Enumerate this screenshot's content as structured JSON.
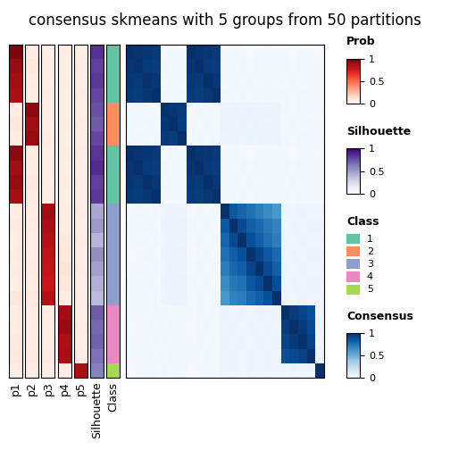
{
  "chart_data": {
    "type": "heatmap",
    "title": "consensus skmeans with 5 groups from 50 partitions",
    "legend_ref": "Consensus",
    "values": [
      [
        1.0,
        0.98,
        0.97,
        0.96,
        0.02,
        0.03,
        0.02,
        1.0,
        0.98,
        0.97,
        0.96,
        0.02,
        0.03,
        0.02,
        0.01,
        0.02,
        0.03,
        0.02,
        0.02,
        0.01,
        0.02,
        0.02,
        0.01
      ],
      [
        0.98,
        1.0,
        0.96,
        0.95,
        0.03,
        0.02,
        0.03,
        0.98,
        1.0,
        0.96,
        0.95,
        0.03,
        0.02,
        0.03,
        0.02,
        0.03,
        0.02,
        0.03,
        0.03,
        0.02,
        0.03,
        0.02,
        0.02
      ],
      [
        0.97,
        0.96,
        1.0,
        0.97,
        0.02,
        0.03,
        0.02,
        0.97,
        0.96,
        1.0,
        0.97,
        0.02,
        0.03,
        0.02,
        0.03,
        0.02,
        0.03,
        0.02,
        0.02,
        0.03,
        0.02,
        0.03,
        0.02
      ],
      [
        0.96,
        0.95,
        0.97,
        1.0,
        0.02,
        0.02,
        0.03,
        0.96,
        0.95,
        0.97,
        1.0,
        0.03,
        0.02,
        0.03,
        0.02,
        0.03,
        0.02,
        0.03,
        0.03,
        0.02,
        0.03,
        0.02,
        0.02
      ],
      [
        0.02,
        0.03,
        0.02,
        0.02,
        1.0,
        0.97,
        0.96,
        0.02,
        0.03,
        0.02,
        0.02,
        0.05,
        0.06,
        0.05,
        0.06,
        0.05,
        0.06,
        0.05,
        0.03,
        0.02,
        0.03,
        0.02,
        0.03
      ],
      [
        0.03,
        0.02,
        0.03,
        0.02,
        0.97,
        1.0,
        0.95,
        0.03,
        0.02,
        0.03,
        0.02,
        0.06,
        0.05,
        0.06,
        0.05,
        0.06,
        0.05,
        0.06,
        0.02,
        0.03,
        0.02,
        0.03,
        0.02
      ],
      [
        0.02,
        0.03,
        0.02,
        0.03,
        0.96,
        0.95,
        1.0,
        0.02,
        0.03,
        0.02,
        0.03,
        0.05,
        0.06,
        0.05,
        0.06,
        0.05,
        0.06,
        0.05,
        0.03,
        0.02,
        0.03,
        0.02,
        0.03
      ],
      [
        1.0,
        0.98,
        0.97,
        0.96,
        0.02,
        0.03,
        0.02,
        1.0,
        0.98,
        0.97,
        0.96,
        0.02,
        0.03,
        0.02,
        0.01,
        0.02,
        0.03,
        0.02,
        0.02,
        0.01,
        0.02,
        0.02,
        0.01
      ],
      [
        0.98,
        1.0,
        0.96,
        0.95,
        0.03,
        0.02,
        0.03,
        0.98,
        1.0,
        0.96,
        0.95,
        0.03,
        0.02,
        0.03,
        0.02,
        0.03,
        0.02,
        0.03,
        0.03,
        0.02,
        0.03,
        0.02,
        0.02
      ],
      [
        0.97,
        0.96,
        1.0,
        0.97,
        0.02,
        0.03,
        0.02,
        0.97,
        0.96,
        1.0,
        0.97,
        0.02,
        0.03,
        0.02,
        0.03,
        0.02,
        0.03,
        0.02,
        0.02,
        0.03,
        0.02,
        0.03,
        0.02
      ],
      [
        0.96,
        0.95,
        0.97,
        1.0,
        0.02,
        0.02,
        0.03,
        0.96,
        0.95,
        0.97,
        1.0,
        0.03,
        0.02,
        0.03,
        0.02,
        0.03,
        0.02,
        0.03,
        0.03,
        0.02,
        0.03,
        0.02,
        0.02
      ],
      [
        0.02,
        0.03,
        0.02,
        0.03,
        0.05,
        0.06,
        0.05,
        0.02,
        0.03,
        0.02,
        0.03,
        1.0,
        0.85,
        0.8,
        0.75,
        0.7,
        0.65,
        0.6,
        0.05,
        0.04,
        0.05,
        0.04,
        0.04
      ],
      [
        0.03,
        0.02,
        0.03,
        0.02,
        0.06,
        0.05,
        0.06,
        0.03,
        0.02,
        0.03,
        0.02,
        0.85,
        1.0,
        0.9,
        0.82,
        0.78,
        0.72,
        0.68,
        0.04,
        0.05,
        0.04,
        0.05,
        0.05
      ],
      [
        0.02,
        0.03,
        0.02,
        0.03,
        0.05,
        0.06,
        0.05,
        0.02,
        0.03,
        0.02,
        0.03,
        0.8,
        0.9,
        1.0,
        0.88,
        0.82,
        0.75,
        0.7,
        0.05,
        0.04,
        0.05,
        0.04,
        0.04
      ],
      [
        0.01,
        0.02,
        0.03,
        0.02,
        0.06,
        0.05,
        0.06,
        0.01,
        0.02,
        0.03,
        0.02,
        0.75,
        0.82,
        0.88,
        1.0,
        0.92,
        0.85,
        0.78,
        0.04,
        0.05,
        0.04,
        0.05,
        0.05
      ],
      [
        0.02,
        0.03,
        0.02,
        0.03,
        0.05,
        0.06,
        0.05,
        0.02,
        0.03,
        0.02,
        0.03,
        0.7,
        0.78,
        0.82,
        0.92,
        1.0,
        0.9,
        0.82,
        0.05,
        0.04,
        0.05,
        0.04,
        0.04
      ],
      [
        0.03,
        0.02,
        0.03,
        0.02,
        0.06,
        0.05,
        0.06,
        0.03,
        0.02,
        0.03,
        0.02,
        0.65,
        0.72,
        0.75,
        0.85,
        0.9,
        1.0,
        0.88,
        0.04,
        0.05,
        0.04,
        0.05,
        0.05
      ],
      [
        0.02,
        0.03,
        0.02,
        0.03,
        0.05,
        0.06,
        0.05,
        0.02,
        0.03,
        0.02,
        0.03,
        0.6,
        0.68,
        0.7,
        0.78,
        0.82,
        0.88,
        1.0,
        0.05,
        0.04,
        0.05,
        0.04,
        0.04
      ],
      [
        0.02,
        0.03,
        0.02,
        0.03,
        0.03,
        0.02,
        0.03,
        0.02,
        0.03,
        0.02,
        0.03,
        0.05,
        0.04,
        0.05,
        0.04,
        0.05,
        0.04,
        0.05,
        1.0,
        0.95,
        0.92,
        0.88,
        0.04
      ],
      [
        0.01,
        0.02,
        0.03,
        0.02,
        0.02,
        0.03,
        0.02,
        0.01,
        0.02,
        0.03,
        0.02,
        0.04,
        0.05,
        0.04,
        0.05,
        0.04,
        0.05,
        0.04,
        0.95,
        1.0,
        0.96,
        0.9,
        0.05
      ],
      [
        0.02,
        0.03,
        0.02,
        0.03,
        0.03,
        0.02,
        0.03,
        0.02,
        0.03,
        0.02,
        0.03,
        0.05,
        0.04,
        0.05,
        0.04,
        0.05,
        0.04,
        0.05,
        0.92,
        0.96,
        1.0,
        0.93,
        0.04
      ],
      [
        0.02,
        0.02,
        0.03,
        0.02,
        0.02,
        0.03,
        0.02,
        0.02,
        0.02,
        0.03,
        0.02,
        0.04,
        0.05,
        0.04,
        0.05,
        0.04,
        0.05,
        0.04,
        0.88,
        0.9,
        0.93,
        1.0,
        0.05
      ],
      [
        0.01,
        0.02,
        0.02,
        0.02,
        0.03,
        0.02,
        0.03,
        0.01,
        0.02,
        0.02,
        0.02,
        0.04,
        0.05,
        0.04,
        0.05,
        0.04,
        0.05,
        0.04,
        0.04,
        0.05,
        0.04,
        0.05,
        1.0
      ]
    ],
    "tracks": [
      {
        "name": "p1",
        "legend_ref": "Prob",
        "values": [
          0.95,
          0.9,
          0.88,
          0.85,
          0.05,
          0.08,
          0.06,
          0.92,
          0.88,
          0.9,
          0.87,
          0.05,
          0.07,
          0.04,
          0.06,
          0.05,
          0.04,
          0.08,
          0.05,
          0.06,
          0.07,
          0.08,
          0.05
        ]
      },
      {
        "name": "p2",
        "legend_ref": "Prob",
        "values": [
          0.05,
          0.08,
          0.06,
          0.05,
          0.92,
          0.88,
          0.9,
          0.06,
          0.05,
          0.07,
          0.06,
          0.05,
          0.06,
          0.04,
          0.05,
          0.06,
          0.05,
          0.07,
          0.06,
          0.05,
          0.06,
          0.07,
          0.05
        ]
      },
      {
        "name": "p3",
        "legend_ref": "Prob",
        "values": [
          0.04,
          0.05,
          0.04,
          0.05,
          0.05,
          0.04,
          0.06,
          0.04,
          0.05,
          0.04,
          0.05,
          0.88,
          0.85,
          0.82,
          0.8,
          0.78,
          0.76,
          0.82,
          0.06,
          0.05,
          0.06,
          0.07,
          0.05
        ]
      },
      {
        "name": "p4",
        "legend_ref": "Prob",
        "values": [
          0.05,
          0.04,
          0.05,
          0.04,
          0.04,
          0.05,
          0.04,
          0.05,
          0.04,
          0.05,
          0.04,
          0.05,
          0.06,
          0.07,
          0.08,
          0.1,
          0.08,
          0.05,
          0.88,
          0.9,
          0.85,
          0.87,
          0.06
        ]
      },
      {
        "name": "p5",
        "legend_ref": "Prob",
        "values": [
          0.04,
          0.05,
          0.04,
          0.05,
          0.04,
          0.05,
          0.04,
          0.05,
          0.04,
          0.05,
          0.04,
          0.05,
          0.04,
          0.05,
          0.04,
          0.05,
          0.04,
          0.05,
          0.04,
          0.05,
          0.04,
          0.05,
          0.85
        ]
      },
      {
        "name": "Silhouette",
        "legend_ref": "Silhouette",
        "values": [
          0.85,
          0.8,
          0.82,
          0.78,
          0.75,
          0.72,
          0.78,
          0.83,
          0.86,
          0.8,
          0.82,
          0.45,
          0.5,
          0.4,
          0.55,
          0.48,
          0.42,
          0.38,
          0.72,
          0.68,
          0.7,
          0.65,
          0.6
        ]
      },
      {
        "name": "Class",
        "legend_ref": "Class",
        "values": [
          1,
          1,
          1,
          1,
          2,
          2,
          2,
          1,
          1,
          1,
          1,
          3,
          3,
          3,
          3,
          3,
          3,
          3,
          4,
          4,
          4,
          4,
          5
        ]
      }
    ],
    "legends": [
      {
        "title": "Prob",
        "range": [
          0,
          1
        ],
        "ticks": [
          0,
          0.5,
          1
        ]
      },
      {
        "title": "Silhouette",
        "range": [
          0,
          1
        ],
        "ticks": [
          0,
          0.5,
          1
        ]
      },
      {
        "title": "Class",
        "items": [
          {
            "name": "1",
            "color": "#66c2a5"
          },
          {
            "name": "2",
            "color": "#fc8d62"
          },
          {
            "name": "3",
            "color": "#8da0cb"
          },
          {
            "name": "4",
            "color": "#e78ac3"
          },
          {
            "name": "5",
            "color": "#a6d854"
          }
        ]
      },
      {
        "title": "Consensus",
        "range": [
          0,
          1
        ],
        "ticks": [
          0,
          0.5,
          1
        ]
      }
    ]
  }
}
